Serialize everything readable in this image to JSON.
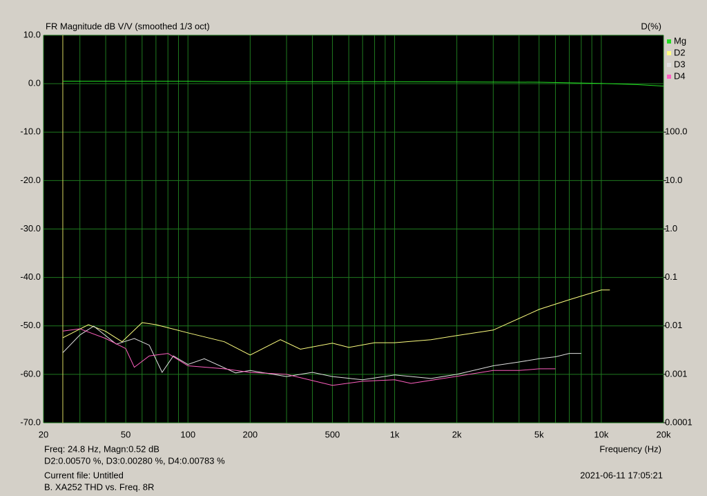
{
  "chart_data": {
    "type": "line",
    "title": "FR Magnitude dB V/V (smoothed 1/3 oct)",
    "y2_label": "D(%)",
    "x_label": "Frequency (Hz)",
    "x_scale": "log",
    "y2_scale": "log",
    "grid": true,
    "grid_color": "#1f7a1f",
    "background": "#000000",
    "legend_position": "right",
    "xlim": [
      20,
      20000
    ],
    "xticks": [
      20,
      50,
      100,
      200,
      500,
      {
        "value": 1000,
        "label": "1k"
      },
      {
        "value": 2000,
        "label": "2k"
      },
      {
        "value": 5000,
        "label": "5k"
      },
      {
        "value": 10000,
        "label": "10k"
      },
      {
        "value": 20000,
        "label": "20k"
      }
    ],
    "xminor_ticks": [
      30,
      40,
      60,
      70,
      80,
      90,
      300,
      400,
      600,
      700,
      800,
      900,
      3000,
      4000,
      6000,
      7000,
      8000,
      9000
    ],
    "ylim": [
      -70,
      10
    ],
    "yticks": [
      {
        "value": 10,
        "label": "10.0"
      },
      {
        "value": 0,
        "label": "0.0"
      },
      {
        "value": -10,
        "label": "-10.0"
      },
      {
        "value": -20,
        "label": "-20.0"
      },
      {
        "value": -30,
        "label": "-30.0"
      },
      {
        "value": -40,
        "label": "-40.0"
      },
      {
        "value": -50,
        "label": "-50.0"
      },
      {
        "value": -60,
        "label": "-60.0"
      },
      {
        "value": -70,
        "label": "-70.0"
      }
    ],
    "y2lim": [
      0.0001,
      10000
    ],
    "y2ticks": [
      {
        "value": 100,
        "label": "100.0"
      },
      {
        "value": 10,
        "label": "10.0"
      },
      {
        "value": 1,
        "label": "1.0"
      },
      0.1,
      0.01,
      0.001,
      0.0001
    ],
    "cursor": 24.8,
    "cursor_color": "#d8d860",
    "annotations": [
      "Freq: 24.8 Hz, Magn:0.52 dB",
      "D2:0.00570 %, D3:0.00280 %, D4:0.00783 %",
      "Current file: Untitled",
      "B. XA252 THD vs. Freq. 8R",
      "2021-06-11  17:05:21"
    ],
    "series": [
      {
        "name": "Mg",
        "color": "#22dd22",
        "axis": "y",
        "x": [
          24.8,
          100,
          150,
          1000,
          5000,
          10000,
          15000,
          20000
        ],
        "values": [
          0.52,
          0.5,
          0.4,
          0.4,
          0.3,
          0.05,
          -0.2,
          -0.5
        ]
      },
      {
        "name": "D2",
        "color": "#ffff80",
        "axis": "y2",
        "x": [
          24.8,
          33,
          40,
          48,
          60,
          70,
          100,
          150,
          200,
          280,
          350,
          500,
          600,
          800,
          1000,
          1500,
          2000,
          3000,
          5000,
          7000,
          10000,
          11000
        ],
        "values": [
          0.0057,
          0.0106,
          0.0077,
          0.0047,
          0.0117,
          0.0106,
          0.0072,
          0.0047,
          0.0025,
          0.0052,
          0.0033,
          0.0044,
          0.0036,
          0.0045,
          0.0045,
          0.0052,
          0.0063,
          0.0082,
          0.0219,
          0.0347,
          0.055,
          0.055
        ]
      },
      {
        "name": "D3",
        "color": "#e0e0e0",
        "axis": "y2",
        "x": [
          24.8,
          30,
          35,
          45,
          55,
          65,
          75,
          85,
          100,
          120,
          170,
          200,
          300,
          400,
          500,
          700,
          1000,
          1500,
          2000,
          3000,
          4000,
          5000,
          6000,
          7000,
          8000
        ],
        "values": [
          0.0028,
          0.0065,
          0.0099,
          0.0042,
          0.0055,
          0.004,
          0.0011,
          0.0024,
          0.0016,
          0.0021,
          0.00107,
          0.0012,
          0.0009,
          0.0011,
          0.0009,
          0.00077,
          0.00097,
          0.00082,
          0.001,
          0.0015,
          0.0018,
          0.0021,
          0.0023,
          0.0027,
          0.0027
        ]
      },
      {
        "name": "D4",
        "color": "#ff60c0",
        "axis": "y2",
        "x": [
          24.8,
          30,
          40,
          50,
          55,
          65,
          80,
          100,
          150,
          200,
          300,
          500,
          700,
          1000,
          1200,
          2000,
          3000,
          4000,
          5000,
          6000
        ],
        "values": [
          0.00783,
          0.0087,
          0.0055,
          0.0034,
          0.0014,
          0.0024,
          0.0027,
          0.0015,
          0.0013,
          0.0011,
          0.001,
          0.00059,
          0.00072,
          0.00077,
          0.00065,
          0.00091,
          0.0012,
          0.0012,
          0.0013,
          0.0013
        ]
      }
    ]
  }
}
